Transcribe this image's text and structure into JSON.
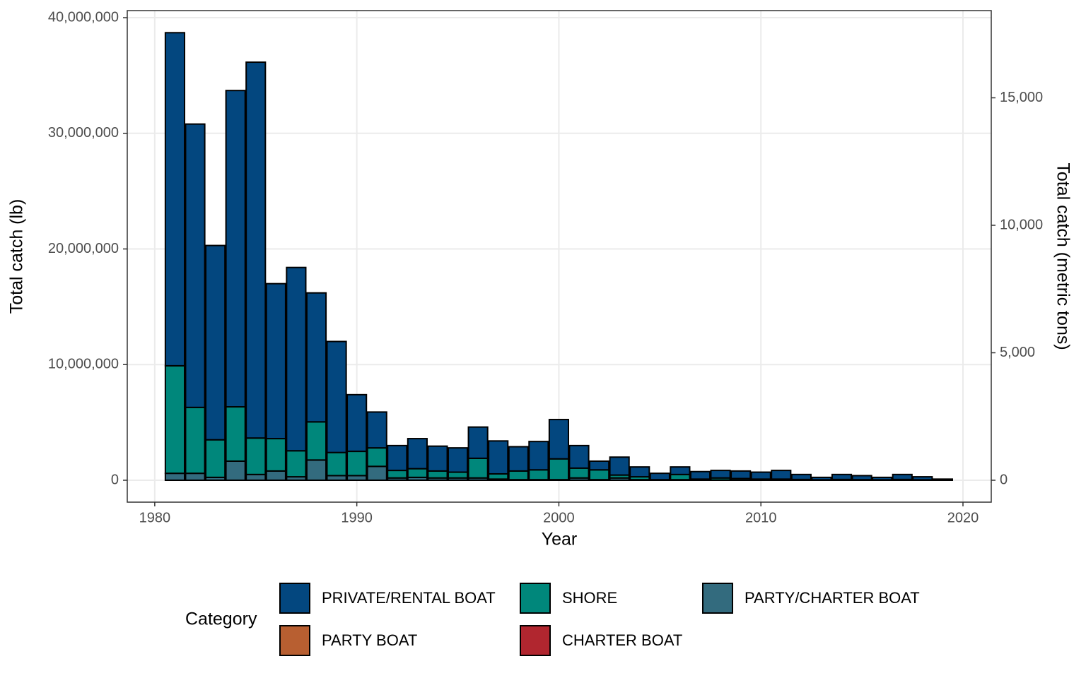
{
  "chart_data": {
    "type": "bar",
    "stacked": true,
    "xlabel": "Year",
    "ylabel": "Total catch (lb)",
    "y2label": "Total catch (metric tons)",
    "legend_title": "Category",
    "legend_position": "bottom",
    "grid": true,
    "x": [
      1981,
      1982,
      1983,
      1984,
      1985,
      1986,
      1987,
      1988,
      1989,
      1990,
      1991,
      1992,
      1993,
      1994,
      1995,
      1996,
      1997,
      1998,
      1999,
      2000,
      2001,
      2002,
      2003,
      2004,
      2005,
      2006,
      2007,
      2008,
      2009,
      2010,
      2011,
      2012,
      2013,
      2014,
      2015,
      2016,
      2017,
      2018,
      2019
    ],
    "xlim": [
      1978.64,
      2021.4
    ],
    "xticks": [
      1980,
      1990,
      2000,
      2010,
      2020
    ],
    "ylim": [
      -1893000,
      40611000
    ],
    "yticks": [
      0,
      {
        "value": 10000000,
        "label": "10,000,000"
      },
      {
        "value": 20000000,
        "label": "20,000,000"
      },
      {
        "value": 30000000,
        "label": "30,000,000"
      },
      {
        "value": 40000000,
        "label": "40,000,000"
      }
    ],
    "y2lim": [
      -858.6,
      18420.9
    ],
    "y2ticks": [
      0,
      {
        "value": 5000,
        "label": "5,000"
      },
      {
        "value": 10000,
        "label": "10,000"
      },
      {
        "value": 15000,
        "label": "15,000"
      }
    ],
    "series": [
      {
        "name": "PRIVATE/RENTAL BOAT",
        "color": "#03477f",
        "values": [
          28800000,
          24500000,
          16800000,
          27350000,
          32500000,
          13400000,
          15850000,
          11150000,
          9600000,
          4900000,
          3100000,
          2150000,
          2600000,
          2150000,
          2100000,
          2700000,
          2850000,
          2100000,
          2450000,
          3400000,
          1950000,
          750000,
          1550000,
          850000,
          550000,
          650000,
          650000,
          650000,
          650000,
          600000,
          750000,
          430000,
          210000,
          430000,
          350000,
          210000,
          430000,
          260000,
          80000
        ]
      },
      {
        "name": "SHORE",
        "color": "#00877b",
        "values": [
          9300000,
          5700000,
          3250000,
          4700000,
          3150000,
          2800000,
          2250000,
          3300000,
          2000000,
          2100000,
          1600000,
          650000,
          750000,
          600000,
          500000,
          1700000,
          450000,
          750000,
          850000,
          1800000,
          850000,
          850000,
          250000,
          250000,
          30000,
          450000,
          80000,
          180000,
          130000,
          80000,
          80000,
          50000,
          30000,
          50000,
          40000,
          30000,
          50000,
          30000,
          10000
        ]
      },
      {
        "name": "PARTY/CHARTER BOAT",
        "color": "#336b7e",
        "values": [
          600000,
          600000,
          250000,
          1650000,
          500000,
          800000,
          300000,
          1750000,
          400000,
          400000,
          1200000,
          200000,
          250000,
          200000,
          200000,
          200000,
          100000,
          50000,
          50000,
          50000,
          200000,
          50000,
          200000,
          50000,
          20000,
          50000,
          20000,
          20000,
          20000,
          20000,
          20000,
          20000,
          10000,
          20000,
          10000,
          10000,
          20000,
          10000,
          10000
        ]
      },
      {
        "name": "PARTY BOAT",
        "color": "#b85f31",
        "values": [
          0,
          0,
          0,
          0,
          0,
          0,
          0,
          0,
          0,
          0,
          0,
          0,
          0,
          0,
          0,
          0,
          0,
          0,
          0,
          0,
          0,
          0,
          0,
          0,
          0,
          0,
          0,
          0,
          0,
          0,
          0,
          0,
          0,
          0,
          0,
          0,
          0,
          0,
          0
        ]
      },
      {
        "name": "CHARTER BOAT",
        "color": "#b1262f",
        "values": [
          0,
          0,
          0,
          0,
          0,
          0,
          0,
          0,
          0,
          0,
          0,
          0,
          0,
          0,
          0,
          0,
          0,
          0,
          0,
          0,
          0,
          0,
          0,
          0,
          0,
          0,
          0,
          0,
          0,
          0,
          0,
          0,
          0,
          0,
          0,
          0,
          0,
          0,
          0
        ]
      }
    ]
  }
}
